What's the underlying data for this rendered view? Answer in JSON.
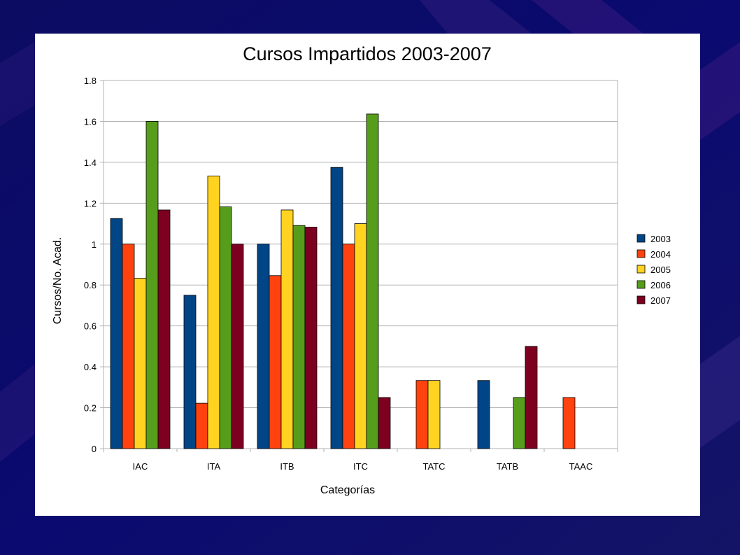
{
  "chart_data": {
    "type": "bar",
    "title": "Cursos Impartidos 2003-2007",
    "xlabel": "Categorías",
    "ylabel": "Cursos/No. Acad.",
    "categories": [
      "IAC",
      "ITA",
      "ITB",
      "ITC",
      "TATC",
      "TATB",
      "TAAC"
    ],
    "ylim": [
      0,
      1.8
    ],
    "yticks": [
      "0",
      "0.2",
      "0.4",
      "0.6",
      "0.8",
      "1",
      "1.2",
      "1.4",
      "1.6",
      "1.8"
    ],
    "grid": true,
    "legend_position": "right",
    "series": [
      {
        "name": "2003",
        "color": "#004586",
        "values": [
          1.125,
          0.75,
          1.0,
          1.375,
          0,
          0.333,
          0
        ]
      },
      {
        "name": "2004",
        "color": "#ff420e",
        "values": [
          1.0,
          0.222,
          0.846,
          1.0,
          0.333,
          0,
          0.25
        ]
      },
      {
        "name": "2005",
        "color": "#ffd320",
        "values": [
          0.833,
          1.333,
          1.167,
          1.1,
          0.333,
          0,
          0
        ]
      },
      {
        "name": "2006",
        "color": "#579d1c",
        "values": [
          1.6,
          1.182,
          1.091,
          1.636,
          0,
          0.25,
          0
        ]
      },
      {
        "name": "2007",
        "color": "#7e0021",
        "values": [
          1.167,
          1.0,
          1.083,
          0.25,
          0,
          0.5,
          0
        ]
      }
    ]
  }
}
